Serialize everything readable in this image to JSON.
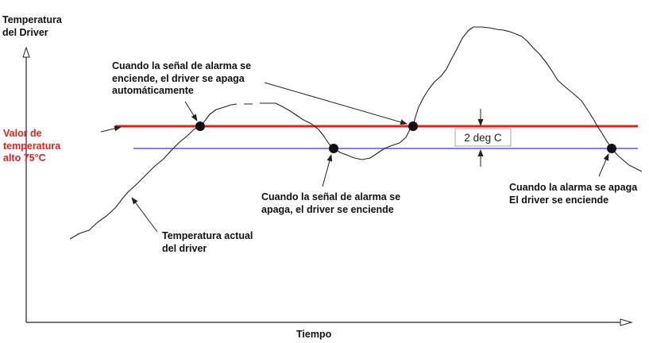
{
  "y_axis_label": "Temperatura\ndel Driver",
  "x_axis_label": "Tiempo",
  "high_threshold_label": "Valor de\ntemperatura\nalto 75°C",
  "hysteresis_label": "2 deg C",
  "annotations": {
    "alarm_on": "Cuando la señal de alarma se\nenciende, el driver se apaga\nautomáticamente",
    "alarm_off": "Cuando la señal de alarma se\napaga, el driver se enciende",
    "alarm_off_right": "Cuando la alarma se apaga\nEl driver se enciende",
    "actual_temperature": "Temperatura actual\ndel driver"
  },
  "colors": {
    "high_threshold_line": "#e0201a",
    "low_threshold_line": "#5a5ad8",
    "curve": "#222222",
    "text": "#111111"
  }
}
